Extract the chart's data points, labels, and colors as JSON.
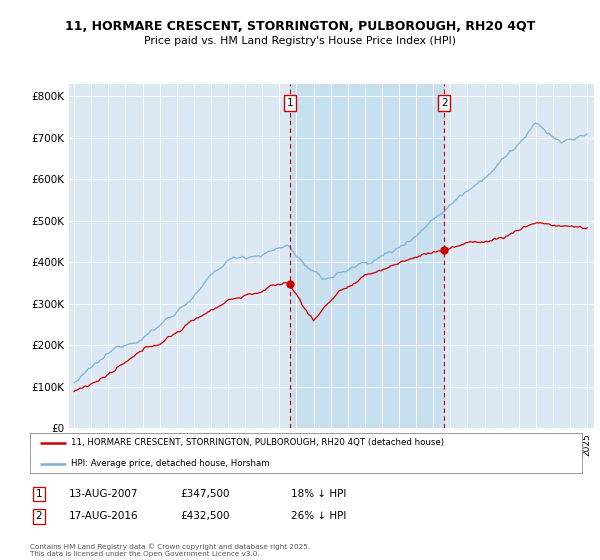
{
  "title1": "11, HORMARE CRESCENT, STORRINGTON, PULBOROUGH, RH20 4QT",
  "title2": "Price paid vs. HM Land Registry's House Price Index (HPI)",
  "bg_color": "#dce9f5",
  "highlight_color": "#c8dff0",
  "red_color": "#cc0000",
  "blue_color": "#7ab3d4",
  "sale1_date": "13-AUG-2007",
  "sale1_price": 347500,
  "sale1_note": "18% ↓ HPI",
  "sale2_date": "17-AUG-2016",
  "sale2_price": 432500,
  "sale2_note": "26% ↓ HPI",
  "legend_red": "11, HORMARE CRESCENT, STORRINGTON, PULBOROUGH, RH20 4QT (detached house)",
  "legend_blue": "HPI: Average price, detached house, Horsham",
  "footer": "Contains HM Land Registry data © Crown copyright and database right 2025.\nThis data is licensed under the Open Government Licence v3.0.",
  "yticks": [
    0,
    100000,
    200000,
    300000,
    400000,
    500000,
    600000,
    700000,
    800000
  ],
  "ytick_labels": [
    "£0",
    "£100K",
    "£200K",
    "£300K",
    "£400K",
    "£500K",
    "£600K",
    "£700K",
    "£800K"
  ],
  "ylim": [
    0,
    830000
  ],
  "sale1_x": 2007.617,
  "sale2_x": 2016.633,
  "xmin": 1994.7,
  "xmax": 2025.4
}
